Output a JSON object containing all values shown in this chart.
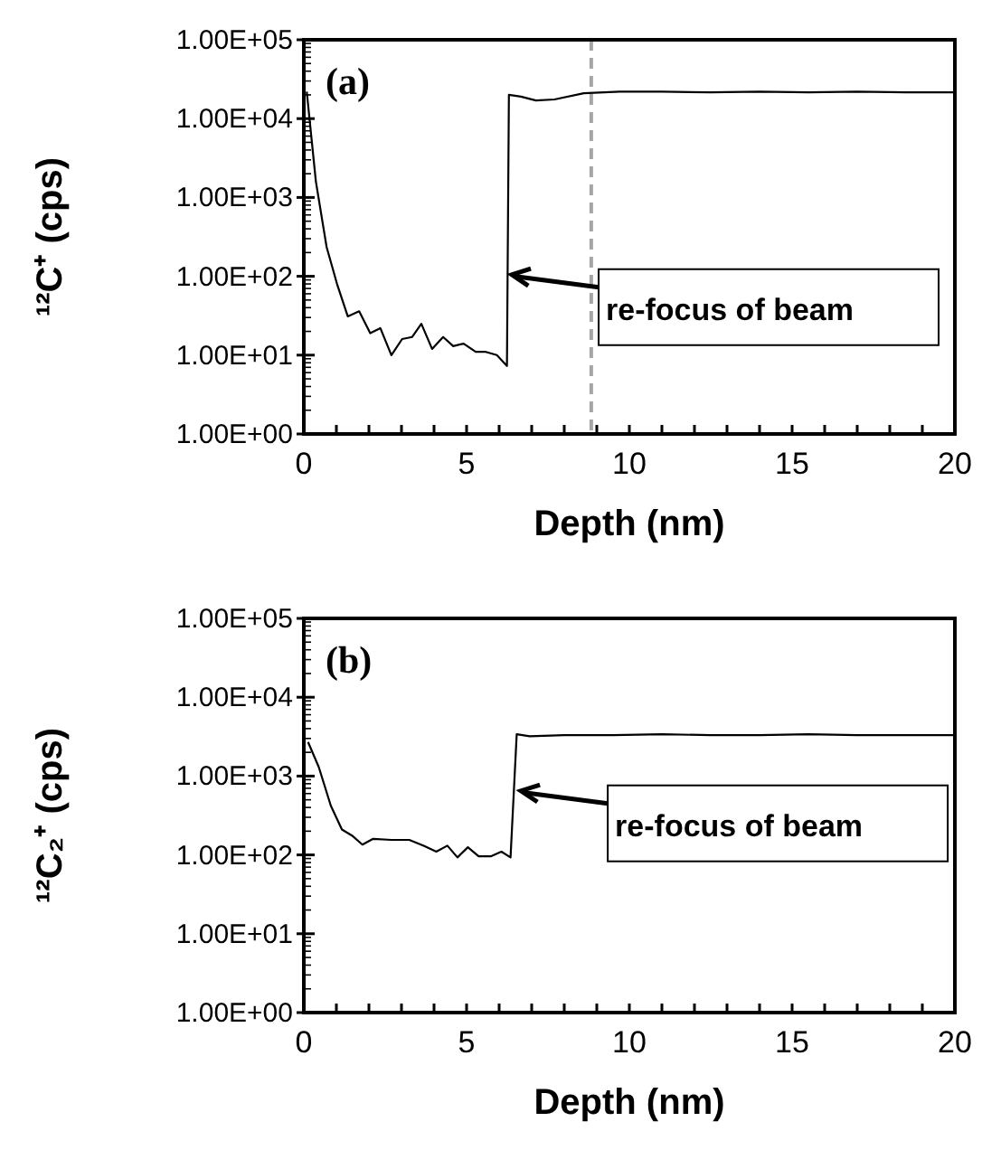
{
  "chart_data": [
    {
      "type": "line",
      "title": "(a)",
      "xlabel": "Depth (nm)",
      "ylabel": "¹²C⁺ (cps)",
      "log": "y",
      "grid": false,
      "marker": "none",
      "line_style": "solid",
      "xlim": [
        0,
        20
      ],
      "xticks": [
        0,
        {
          "value": 1,
          "label": null
        },
        {
          "value": 2,
          "label": null
        },
        {
          "value": 3,
          "label": null
        },
        {
          "value": 4,
          "label": null
        },
        5,
        {
          "value": 6,
          "label": null
        },
        {
          "value": 7,
          "label": null
        },
        {
          "value": 8,
          "label": null
        },
        {
          "value": 9,
          "label": null
        },
        10,
        {
          "value": 11,
          "label": null
        },
        {
          "value": 12,
          "label": null
        },
        {
          "value": 13,
          "label": null
        },
        {
          "value": 14,
          "label": null
        },
        15,
        {
          "value": 16,
          "label": null
        },
        {
          "value": 17,
          "label": null
        },
        {
          "value": 18,
          "label": null
        },
        {
          "value": 19,
          "label": null
        },
        20
      ],
      "ylim": [
        1,
        100000
      ],
      "yticks": [
        {
          "value": 1,
          "label": "1.00E+00"
        },
        {
          "value": 10,
          "label": "1.00E+01"
        },
        {
          "value": 100,
          "label": "1.00E+02"
        },
        {
          "value": 1000,
          "label": "1.00E+03"
        },
        {
          "value": 10000,
          "label": "1.00E+04"
        },
        {
          "value": 100000,
          "label": "1.00E+05"
        }
      ],
      "series": [
        {
          "color": "#000000",
          "x": [
            0.09,
            0.37,
            0.7,
            1.02,
            1.35,
            1.7,
            2.04,
            2.35,
            2.69,
            3.02,
            3.33,
            3.61,
            3.94,
            4.28,
            4.59,
            4.91,
            5.28,
            5.59,
            5.93,
            6.24,
            6.3,
            6.67,
            7.13,
            7.7,
            8.6,
            9.7,
            11,
            12.5,
            14,
            15.5,
            17,
            18.5,
            20
          ],
          "values": [
            22000,
            1600,
            235,
            80,
            31,
            36,
            19,
            22,
            10,
            16,
            17,
            25,
            12,
            17,
            13,
            14,
            11,
            11,
            10,
            7.3,
            20000,
            19000,
            17000,
            17500,
            21000,
            22000,
            22000,
            21500,
            22000,
            21500,
            22000,
            21500,
            21500
          ]
        }
      ],
      "ref_lines": [
        {
          "axis": "x",
          "value": 8.83,
          "color": "#a6a6a6",
          "line_style": "dashed"
        }
      ],
      "annotations": [
        {
          "text": "re-focus of beam",
          "x": 6.39,
          "y": 105
        }
      ]
    },
    {
      "type": "line",
      "title": "(b)",
      "xlabel": "Depth (nm)",
      "ylabel": "¹²C₂⁺ (cps)",
      "log": "y",
      "grid": false,
      "marker": "none",
      "line_style": "solid",
      "xlim": [
        0,
        20
      ],
      "xticks": [
        0,
        {
          "value": 1,
          "label": null
        },
        {
          "value": 2,
          "label": null
        },
        {
          "value": 3,
          "label": null
        },
        {
          "value": 4,
          "label": null
        },
        5,
        {
          "value": 6,
          "label": null
        },
        {
          "value": 7,
          "label": null
        },
        {
          "value": 8,
          "label": null
        },
        {
          "value": 9,
          "label": null
        },
        10,
        {
          "value": 11,
          "label": null
        },
        {
          "value": 12,
          "label": null
        },
        {
          "value": 13,
          "label": null
        },
        {
          "value": 14,
          "label": null
        },
        15,
        {
          "value": 16,
          "label": null
        },
        {
          "value": 17,
          "label": null
        },
        {
          "value": 18,
          "label": null
        },
        {
          "value": 19,
          "label": null
        },
        20
      ],
      "ylim": [
        1,
        100000
      ],
      "yticks": [
        {
          "value": 1,
          "label": "1.00E+00"
        },
        {
          "value": 10,
          "label": "1.00E+01"
        },
        {
          "value": 100,
          "label": "1.00E+02"
        },
        {
          "value": 1000,
          "label": "1.00E+03"
        },
        {
          "value": 10000,
          "label": "1.00E+04"
        },
        {
          "value": 100000,
          "label": "1.00E+05"
        }
      ],
      "series": [
        {
          "color": "#000000",
          "x": [
            0.13,
            0.46,
            0.83,
            1.17,
            1.48,
            1.8,
            2.13,
            2.69,
            3.24,
            3.7,
            4.07,
            4.41,
            4.72,
            5.04,
            5.37,
            5.74,
            6.07,
            6.35,
            6.54,
            6.94,
            8,
            9.5,
            11,
            12.5,
            14,
            15.5,
            17,
            18.5,
            20
          ],
          "values": [
            2700,
            1300,
            420,
            210,
            176,
            135,
            160,
            155,
            155,
            130,
            110,
            131,
            93,
            125,
            96,
            96,
            110,
            93,
            3400,
            3200,
            3300,
            3300,
            3400,
            3300,
            3300,
            3400,
            3300,
            3300,
            3300
          ]
        }
      ],
      "annotations": [
        {
          "text": "re-focus of beam",
          "x": 6.67,
          "y": 650
        }
      ]
    }
  ]
}
